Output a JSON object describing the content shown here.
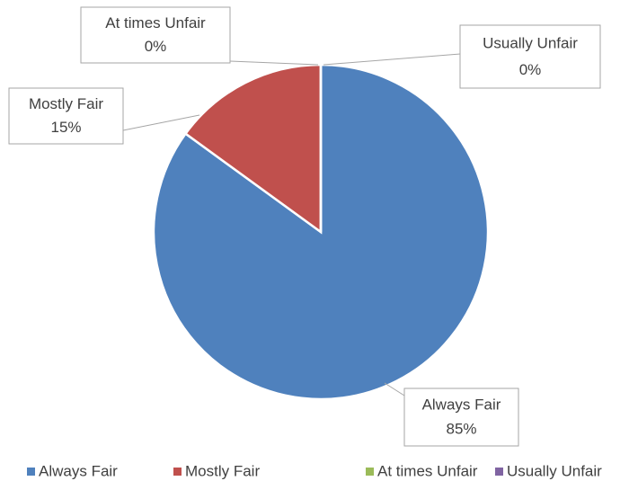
{
  "chart_data": {
    "type": "pie",
    "categories": [
      "Always Fair",
      "Mostly Fair",
      "At times Unfair",
      "Usually Unfair"
    ],
    "values": [
      85,
      15,
      0,
      0
    ],
    "value_labels": [
      "85%",
      "15%",
      "0%",
      "0%"
    ],
    "colors": [
      "#4f81bd",
      "#c0504d",
      "#9bbb59",
      "#8064a2"
    ],
    "legend": "bottom"
  }
}
